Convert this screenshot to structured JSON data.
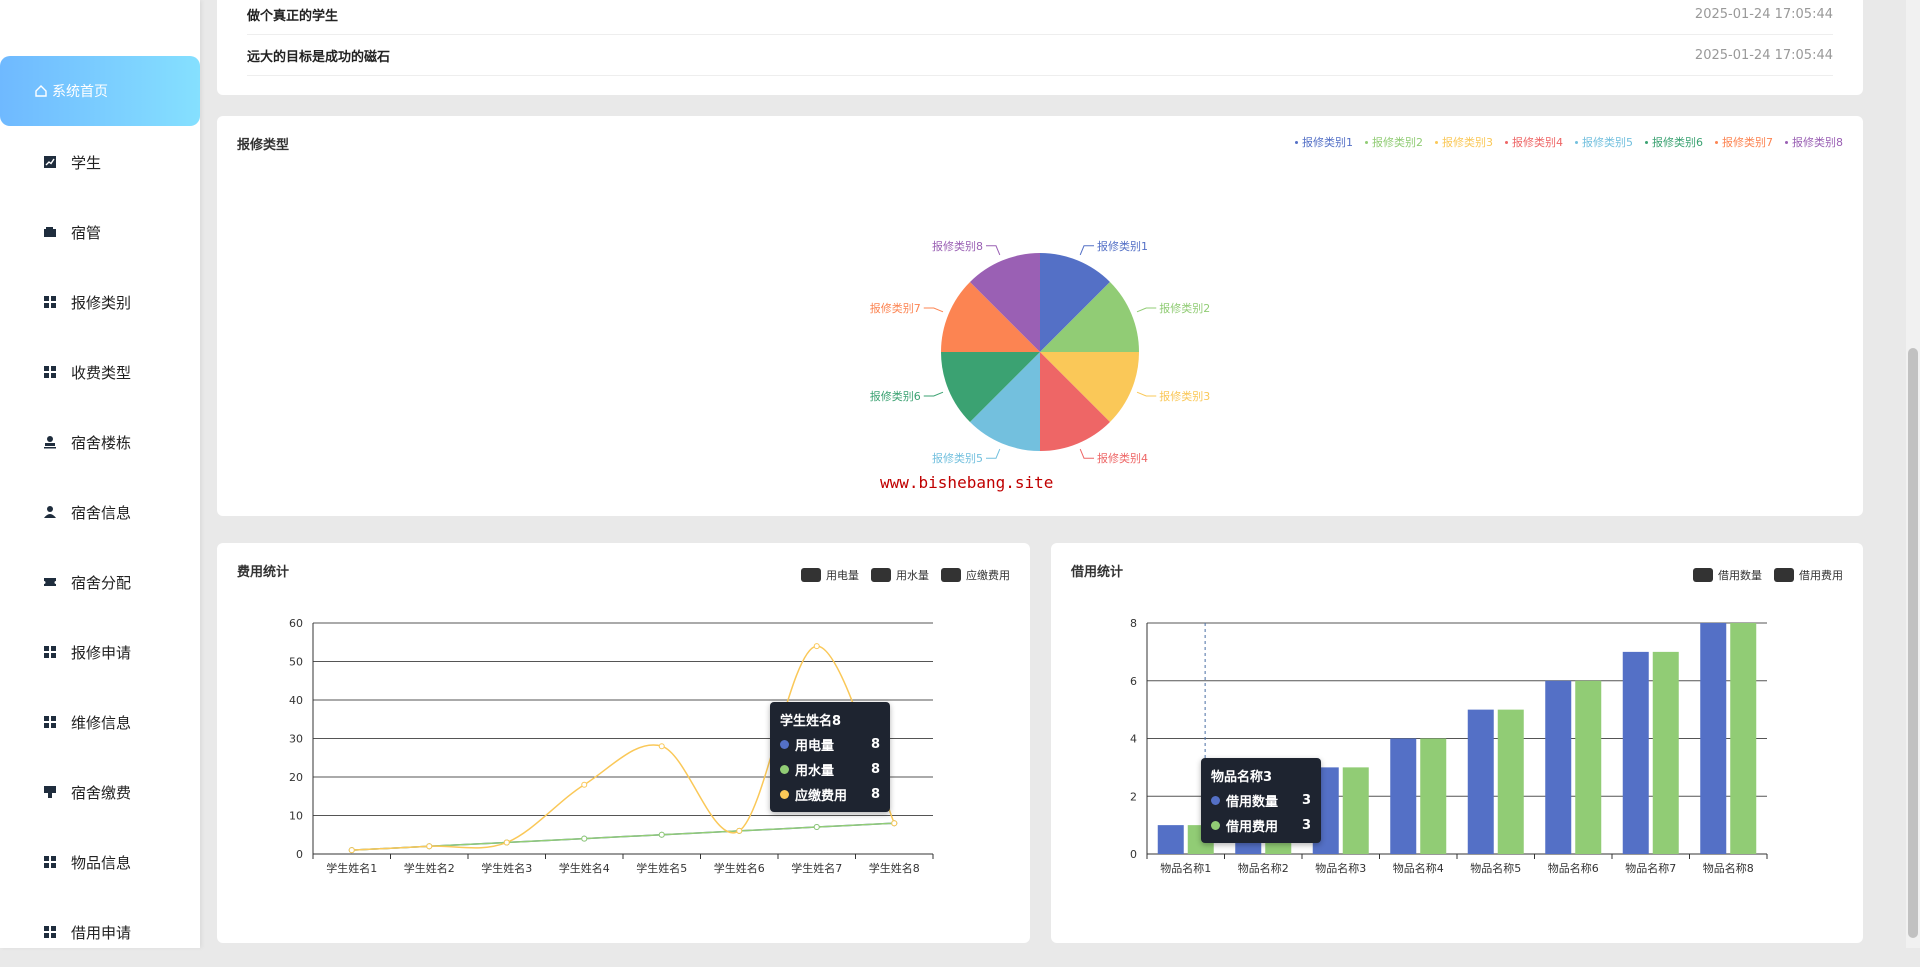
{
  "sidebar": {
    "items": [
      {
        "label": "系统首页",
        "icon": "home-icon",
        "active": true
      },
      {
        "label": "学生",
        "icon": "trend-icon"
      },
      {
        "label": "宿管",
        "icon": "wallet-icon"
      },
      {
        "label": "报修类别",
        "icon": "grid-icon"
      },
      {
        "label": "收费类型",
        "icon": "grid-icon"
      },
      {
        "label": "宿舍楼栋",
        "icon": "person-icon"
      },
      {
        "label": "宿舍信息",
        "icon": "user-icon"
      },
      {
        "label": "宿舍分配",
        "icon": "ticket-icon"
      },
      {
        "label": "报修申请",
        "icon": "grid-icon"
      },
      {
        "label": "维修信息",
        "icon": "grid-icon"
      },
      {
        "label": "宿舍缴费",
        "icon": "stamp-icon"
      },
      {
        "label": "物品信息",
        "icon": "grid-icon"
      },
      {
        "label": "借用申请",
        "icon": "grid-icon"
      }
    ]
  },
  "notices": [
    {
      "title": "做个真正的学生",
      "date": "2025-01-24 17:05:44"
    },
    {
      "title": "远大的目标是成功的磁石",
      "date": "2025-01-24 17:05:44"
    }
  ],
  "pie_panel": {
    "title": "报修类型"
  },
  "fee_panel": {
    "title": "费用统计"
  },
  "borrow_panel": {
    "title": "借用统计"
  },
  "watermark": "www.bishebang.site",
  "colors": {
    "blue": "#5470c6",
    "green": "#91cc75",
    "yellow": "#fac858",
    "red": "#ee6666",
    "cyan": "#73c0de",
    "teal": "#3ba272",
    "orange": "#fc8452",
    "purple": "#9a60b4"
  },
  "tooltips": {
    "fee": {
      "title": "学生姓名8",
      "rows": [
        {
          "name": "用电量",
          "value": "8"
        },
        {
          "name": "用水量",
          "value": "8"
        },
        {
          "name": "应缴费用",
          "value": "8"
        }
      ]
    },
    "borrow": {
      "title": "物品名称3",
      "rows": [
        {
          "name": "借用数量",
          "value": "3"
        },
        {
          "name": "借用费用",
          "value": "3"
        }
      ]
    }
  },
  "chart_data": [
    {
      "type": "pie",
      "title": "报修类型",
      "legend_position": "top-right",
      "labels": [
        "报修类别1",
        "报修类别2",
        "报修类别3",
        "报修类别4",
        "报修类别5",
        "报修类别6",
        "报修类别7",
        "报修类别8"
      ],
      "values": [
        1,
        1,
        1,
        1,
        1,
        1,
        1,
        1
      ]
    },
    {
      "type": "line",
      "title": "费用统计",
      "legend_position": "top-right",
      "categories": [
        "学生姓名1",
        "学生姓名2",
        "学生姓名3",
        "学生姓名4",
        "学生姓名5",
        "学生姓名6",
        "学生姓名7",
        "学生姓名8"
      ],
      "ylim": [
        0,
        60
      ],
      "yticks": [
        0,
        10,
        20,
        30,
        40,
        50,
        60
      ],
      "grid": true,
      "series": [
        {
          "name": "用电量",
          "values": [
            1,
            2,
            3,
            4,
            5,
            6,
            7,
            8
          ]
        },
        {
          "name": "用水量",
          "values": [
            1,
            2,
            3,
            4,
            5,
            6,
            7,
            8
          ]
        },
        {
          "name": "应缴费用",
          "values": [
            1,
            2,
            3,
            18,
            28,
            6,
            54,
            8
          ]
        }
      ]
    },
    {
      "type": "bar",
      "title": "借用统计",
      "legend_position": "top-right",
      "categories": [
        "物品名称1",
        "物品名称2",
        "物品名称3",
        "物品名称4",
        "物品名称5",
        "物品名称6",
        "物品名称7",
        "物品名称8"
      ],
      "ylim": [
        0,
        8
      ],
      "yticks": [
        0,
        2,
        4,
        6,
        8
      ],
      "grid": true,
      "series": [
        {
          "name": "借用数量",
          "values": [
            1,
            2,
            3,
            4,
            5,
            6,
            7,
            8
          ]
        },
        {
          "name": "借用费用",
          "values": [
            1,
            2,
            3,
            4,
            5,
            6,
            7,
            8
          ]
        }
      ]
    }
  ]
}
